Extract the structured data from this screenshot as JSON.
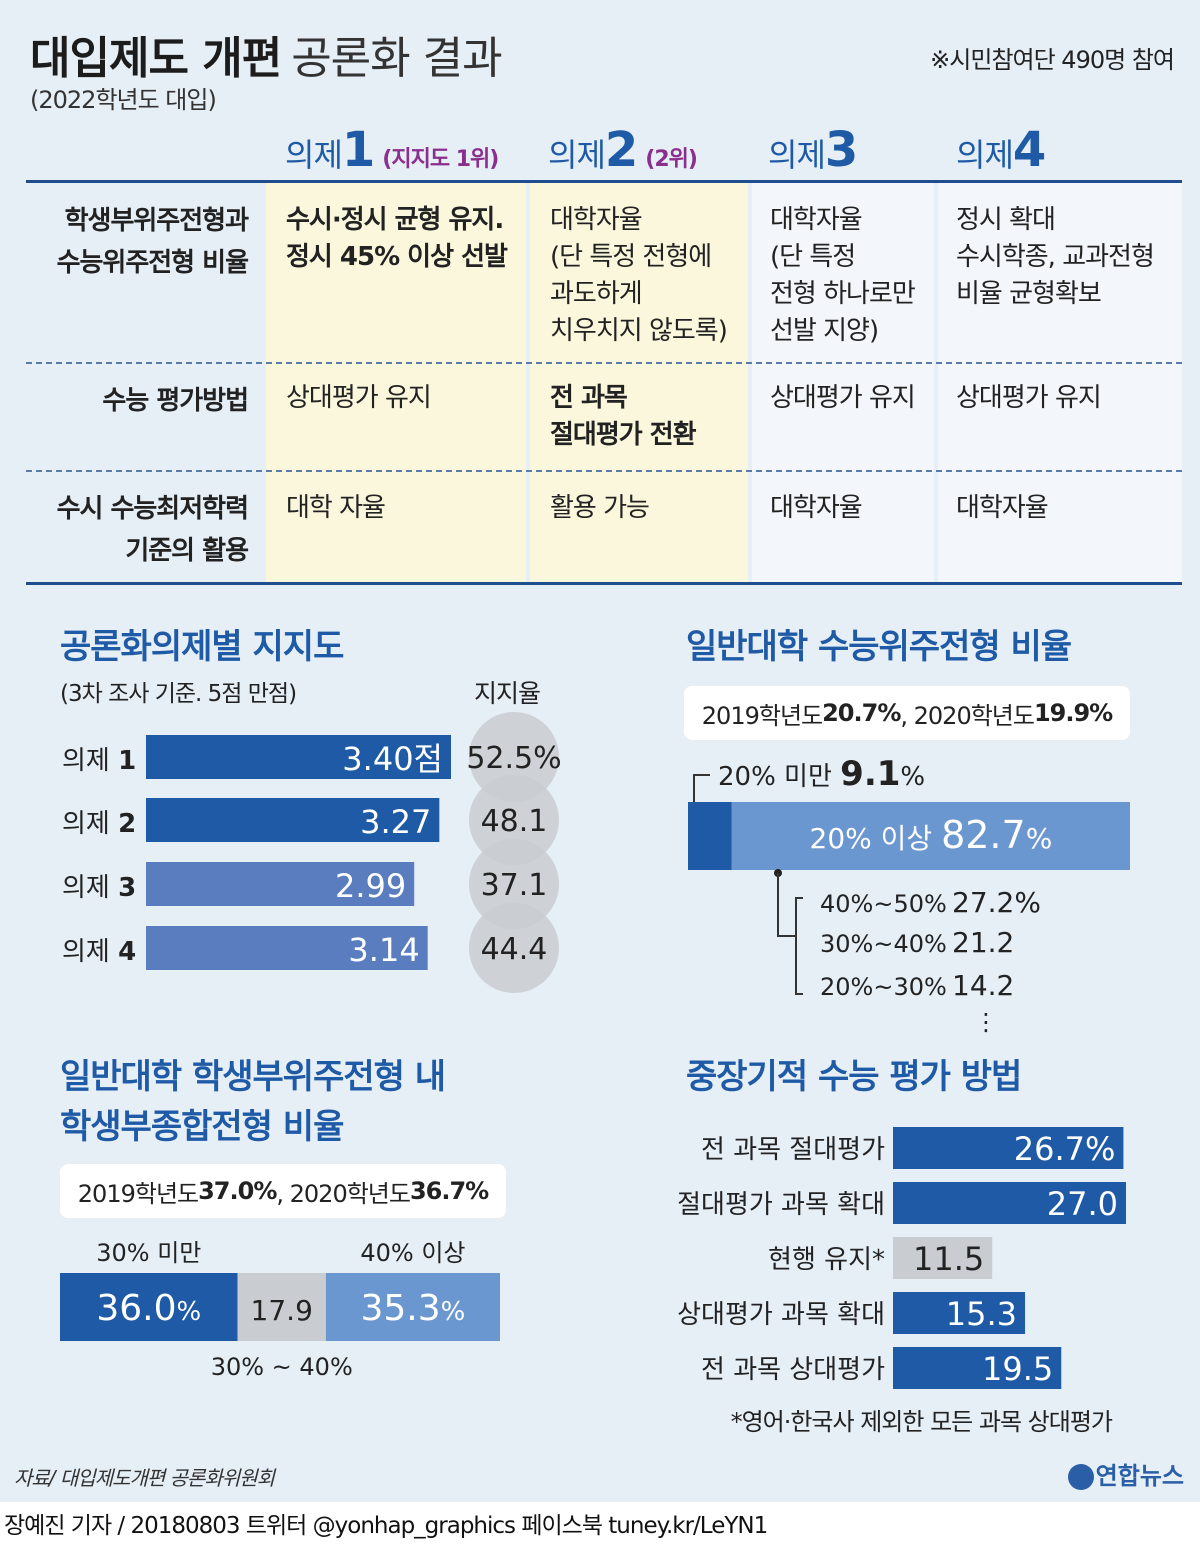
{
  "header": {
    "title_bold": "대입제도 개편",
    "title_normal": "공론화 결과",
    "subtitle": "(2022학년도 대입)",
    "note": "※시민참여단 490명 참여"
  },
  "agendas": [
    {
      "label": "의제",
      "num": "1",
      "rank": "(지지도 1위)"
    },
    {
      "label": "의제",
      "num": "2",
      "rank": "(2위)"
    },
    {
      "label": "의제",
      "num": "3",
      "rank": ""
    },
    {
      "label": "의제",
      "num": "4",
      "rank": ""
    }
  ],
  "table": {
    "rows": [
      {
        "label": "학생부위주전형과\n수능위주전형 비율",
        "cells": [
          "수시·정시 균형 유지.\n정시 45% 이상 선발",
          "대학자율\n(단 특정 전형에\n과도하게\n치우치지 않도록)",
          "대학자율\n(단 특정\n전형 하나로만\n선발 지양)",
          "정시 확대\n수시학종, 교과전형\n비율 균형확보"
        ]
      },
      {
        "label": "수능 평가방법",
        "cells": [
          "상대평가 유지",
          "전 과목\n절대평가 전환",
          "상대평가 유지",
          "상대평가 유지"
        ]
      },
      {
        "label": "수시 수능최저학력\n기준의 활용",
        "cells": [
          "대학 자율",
          "활용 가능",
          "대학자율",
          "대학자율"
        ]
      }
    ]
  },
  "colors": {
    "dark_blue": "#1f5aa6",
    "mid_blue": "#5a7dbf",
    "light_blue": "#6b97d0",
    "gray": "#c9ccd1",
    "highlight": "#fbf7dc"
  },
  "chart_data": [
    {
      "type": "bar",
      "title": "공론화의제별 지지도",
      "subtitle": "(3차 조사 기준. 5점 만점)",
      "support_header": "지지율",
      "categories": [
        "의제 1",
        "의제 2",
        "의제 3",
        "의제 4"
      ],
      "values": [
        3.4,
        3.27,
        2.99,
        3.14
      ],
      "value_labels": [
        "3.40점",
        "3.27",
        "2.99",
        "3.14"
      ],
      "support": [
        "52.5%",
        "48.1",
        "37.1",
        "44.4"
      ]
    },
    {
      "type": "bar",
      "title": "일반대학 수능위주전형 비율",
      "summary_parts": [
        "2019학년도 ",
        "20.7%",
        ", 2020학년도 ",
        "19.9%"
      ],
      "segments": [
        {
          "label": "20% 미만",
          "value": 9.1,
          "value_label": "9.1",
          "unit": "%"
        },
        {
          "label": "20% 이상",
          "value": 82.7,
          "value_label": "82.7",
          "unit": "%"
        }
      ],
      "breakdown": [
        {
          "label": "40%~50%",
          "value": "27.2%"
        },
        {
          "label": "30%~40%",
          "value": "21.2"
        },
        {
          "label": "20%~30%",
          "value": "14.2"
        }
      ],
      "more": "⋮"
    },
    {
      "type": "bar",
      "title": "일반대학 학생부위주전형 내\n학생부종합전형 비율",
      "summary_parts": [
        "2019학년도 ",
        "37.0%",
        ", 2020학년도 ",
        "36.7%"
      ],
      "segments": [
        {
          "label": "30% 미만",
          "value": 36.0,
          "value_label": "36.0",
          "unit": "%"
        },
        {
          "label": "30% ~ 40%",
          "value": 17.9,
          "value_label": "17.9",
          "unit": ""
        },
        {
          "label": "40% 이상",
          "value": 35.3,
          "value_label": "35.3",
          "unit": "%"
        }
      ]
    },
    {
      "type": "bar",
      "title": "중장기적 수능 평가 방법",
      "categories": [
        "전 과목 절대평가",
        "절대평가 과목 확대",
        "현행 유지*",
        "상대평가 과목 확대",
        "전 과목 상대평가"
      ],
      "values": [
        26.7,
        27.0,
        11.5,
        15.3,
        19.5
      ],
      "value_labels": [
        "26.7%",
        "27.0",
        "11.5",
        "15.3",
        "19.5"
      ],
      "footnote": "*영어·한국사 제외한 모든 과목 상대평가"
    }
  ],
  "footer": {
    "source": "자료/ 대입제도개편 공론화위원회",
    "logo": "연합뉴스",
    "credit": "장예진 기자 / 20180803 트위터 @yonhap_graphics  페이스북 tuney.kr/LeYN1"
  }
}
